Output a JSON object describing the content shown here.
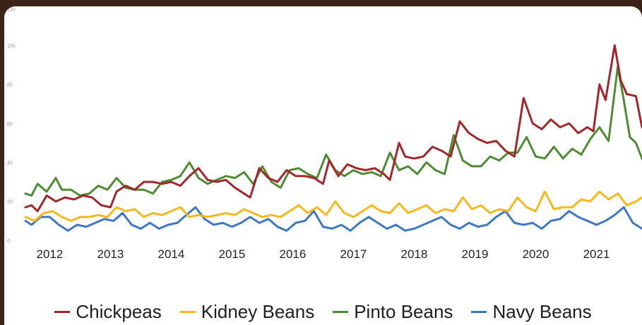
{
  "chart_data": {
    "type": "line",
    "title": "",
    "xlabel": "",
    "ylabel": "",
    "ylim": [
      0,
      120
    ],
    "yticks": [
      0,
      20,
      40,
      60,
      80,
      100,
      120
    ],
    "ytick_labels": [
      "0",
      "20",
      "40",
      "60",
      "80",
      "100",
      "120"
    ],
    "xlim": [
      2011.6,
      2021.75
    ],
    "xticks": [
      2012,
      2013,
      2014,
      2015,
      2016,
      2017,
      2018,
      2019,
      2020,
      2021
    ],
    "xtick_labels": [
      "2012",
      "2013",
      "2014",
      "2015",
      "2016",
      "2017",
      "2018",
      "2019",
      "2020",
      "2021"
    ],
    "grid": false,
    "legend_position": "bottom",
    "series": [
      {
        "name": "Chickpeas",
        "color": "#a3262b",
        "points": [
          [
            2011.6,
            17
          ],
          [
            2011.7,
            18
          ],
          [
            2011.8,
            15
          ],
          [
            2011.95,
            23
          ],
          [
            2012.1,
            20
          ],
          [
            2012.25,
            22
          ],
          [
            2012.4,
            21
          ],
          [
            2012.55,
            23
          ],
          [
            2012.7,
            22
          ],
          [
            2012.85,
            18
          ],
          [
            2013.0,
            17
          ],
          [
            2013.1,
            25
          ],
          [
            2013.25,
            28
          ],
          [
            2013.4,
            26
          ],
          [
            2013.55,
            30
          ],
          [
            2013.7,
            30
          ],
          [
            2013.85,
            29
          ],
          [
            2014.0,
            30
          ],
          [
            2014.15,
            28
          ],
          [
            2014.3,
            33
          ],
          [
            2014.45,
            37
          ],
          [
            2014.6,
            31
          ],
          [
            2014.75,
            30
          ],
          [
            2014.9,
            31
          ],
          [
            2015.05,
            27
          ],
          [
            2015.2,
            24
          ],
          [
            2015.3,
            22
          ],
          [
            2015.45,
            37
          ],
          [
            2015.6,
            32
          ],
          [
            2015.75,
            30
          ],
          [
            2015.9,
            36
          ],
          [
            2016.05,
            33
          ],
          [
            2016.2,
            33
          ],
          [
            2016.35,
            32
          ],
          [
            2016.5,
            29
          ],
          [
            2016.6,
            41
          ],
          [
            2016.75,
            33
          ],
          [
            2016.9,
            39
          ],
          [
            2017.05,
            37
          ],
          [
            2017.2,
            36
          ],
          [
            2017.35,
            37
          ],
          [
            2017.5,
            34
          ],
          [
            2017.6,
            31
          ],
          [
            2017.75,
            50
          ],
          [
            2017.85,
            43
          ],
          [
            2018.0,
            42
          ],
          [
            2018.15,
            43
          ],
          [
            2018.3,
            48
          ],
          [
            2018.45,
            46
          ],
          [
            2018.6,
            43
          ],
          [
            2018.75,
            61
          ],
          [
            2018.9,
            55
          ],
          [
            2019.05,
            52
          ],
          [
            2019.2,
            50
          ],
          [
            2019.35,
            51
          ],
          [
            2019.5,
            46
          ],
          [
            2019.65,
            43
          ],
          [
            2019.8,
            73
          ],
          [
            2019.95,
            60
          ],
          [
            2020.1,
            57
          ],
          [
            2020.25,
            62
          ],
          [
            2020.4,
            58
          ],
          [
            2020.55,
            60
          ],
          [
            2020.7,
            55
          ],
          [
            2020.85,
            58
          ],
          [
            2020.95,
            56
          ],
          [
            2021.05,
            80
          ],
          [
            2021.15,
            72
          ],
          [
            2021.3,
            100
          ],
          [
            2021.4,
            82
          ],
          [
            2021.5,
            75
          ],
          [
            2021.65,
            74
          ],
          [
            2021.75,
            58
          ]
        ]
      },
      {
        "name": "Kidney Beans",
        "color": "#f7b81c",
        "points": [
          [
            2011.6,
            12
          ],
          [
            2011.75,
            10
          ],
          [
            2011.9,
            14
          ],
          [
            2012.05,
            15
          ],
          [
            2012.2,
            12
          ],
          [
            2012.35,
            10
          ],
          [
            2012.5,
            12
          ],
          [
            2012.65,
            12
          ],
          [
            2012.8,
            13
          ],
          [
            2012.95,
            12
          ],
          [
            2013.1,
            17
          ],
          [
            2013.25,
            15
          ],
          [
            2013.4,
            16
          ],
          [
            2013.55,
            12
          ],
          [
            2013.7,
            14
          ],
          [
            2013.85,
            13
          ],
          [
            2014.0,
            15
          ],
          [
            2014.15,
            17
          ],
          [
            2014.3,
            12
          ],
          [
            2014.45,
            13
          ],
          [
            2014.6,
            12
          ],
          [
            2014.75,
            13
          ],
          [
            2014.9,
            14
          ],
          [
            2015.05,
            13
          ],
          [
            2015.2,
            16
          ],
          [
            2015.35,
            14
          ],
          [
            2015.5,
            12
          ],
          [
            2015.65,
            13
          ],
          [
            2015.8,
            12
          ],
          [
            2015.95,
            15
          ],
          [
            2016.1,
            18
          ],
          [
            2016.25,
            14
          ],
          [
            2016.4,
            17
          ],
          [
            2016.55,
            13
          ],
          [
            2016.7,
            20
          ],
          [
            2016.85,
            14
          ],
          [
            2017.0,
            12
          ],
          [
            2017.15,
            15
          ],
          [
            2017.3,
            18
          ],
          [
            2017.45,
            15
          ],
          [
            2017.6,
            14
          ],
          [
            2017.75,
            19
          ],
          [
            2017.9,
            14
          ],
          [
            2018.05,
            16
          ],
          [
            2018.2,
            18
          ],
          [
            2018.35,
            14
          ],
          [
            2018.5,
            16
          ],
          [
            2018.65,
            15
          ],
          [
            2018.8,
            22
          ],
          [
            2018.95,
            16
          ],
          [
            2019.1,
            18
          ],
          [
            2019.25,
            14
          ],
          [
            2019.4,
            16
          ],
          [
            2019.55,
            15
          ],
          [
            2019.7,
            22
          ],
          [
            2019.85,
            17
          ],
          [
            2020.0,
            15
          ],
          [
            2020.15,
            25
          ],
          [
            2020.3,
            16
          ],
          [
            2020.45,
            17
          ],
          [
            2020.6,
            17
          ],
          [
            2020.75,
            21
          ],
          [
            2020.9,
            20
          ],
          [
            2021.05,
            25
          ],
          [
            2021.2,
            21
          ],
          [
            2021.35,
            24
          ],
          [
            2021.5,
            18
          ],
          [
            2021.65,
            20
          ],
          [
            2021.75,
            22
          ]
        ]
      },
      {
        "name": "Pinto Beans",
        "color": "#4e8c34",
        "points": [
          [
            2011.6,
            24
          ],
          [
            2011.7,
            23
          ],
          [
            2011.8,
            29
          ],
          [
            2011.95,
            25
          ],
          [
            2012.1,
            32
          ],
          [
            2012.2,
            26
          ],
          [
            2012.35,
            26
          ],
          [
            2012.5,
            23
          ],
          [
            2012.65,
            24
          ],
          [
            2012.8,
            28
          ],
          [
            2012.95,
            26
          ],
          [
            2013.1,
            32
          ],
          [
            2013.25,
            27
          ],
          [
            2013.4,
            26
          ],
          [
            2013.55,
            26
          ],
          [
            2013.7,
            24
          ],
          [
            2013.85,
            30
          ],
          [
            2014.0,
            31
          ],
          [
            2014.15,
            33
          ],
          [
            2014.3,
            40
          ],
          [
            2014.45,
            32
          ],
          [
            2014.6,
            29
          ],
          [
            2014.75,
            31
          ],
          [
            2014.9,
            33
          ],
          [
            2015.05,
            32
          ],
          [
            2015.2,
            35
          ],
          [
            2015.35,
            29
          ],
          [
            2015.5,
            38
          ],
          [
            2015.65,
            30
          ],
          [
            2015.8,
            27
          ],
          [
            2015.95,
            36
          ],
          [
            2016.1,
            37
          ],
          [
            2016.25,
            34
          ],
          [
            2016.4,
            32
          ],
          [
            2016.55,
            44
          ],
          [
            2016.7,
            36
          ],
          [
            2016.85,
            33
          ],
          [
            2017.0,
            36
          ],
          [
            2017.15,
            34
          ],
          [
            2017.3,
            35
          ],
          [
            2017.45,
            33
          ],
          [
            2017.6,
            45
          ],
          [
            2017.75,
            36
          ],
          [
            2017.9,
            38
          ],
          [
            2018.05,
            34
          ],
          [
            2018.2,
            40
          ],
          [
            2018.35,
            36
          ],
          [
            2018.5,
            34
          ],
          [
            2018.65,
            54
          ],
          [
            2018.8,
            41
          ],
          [
            2018.95,
            38
          ],
          [
            2019.1,
            38
          ],
          [
            2019.25,
            43
          ],
          [
            2019.4,
            41
          ],
          [
            2019.55,
            45
          ],
          [
            2019.7,
            45
          ],
          [
            2019.85,
            53
          ],
          [
            2020.0,
            43
          ],
          [
            2020.15,
            42
          ],
          [
            2020.3,
            48
          ],
          [
            2020.45,
            42
          ],
          [
            2020.6,
            47
          ],
          [
            2020.75,
            44
          ],
          [
            2020.9,
            52
          ],
          [
            2021.05,
            58
          ],
          [
            2021.2,
            51
          ],
          [
            2021.35,
            89
          ],
          [
            2021.45,
            72
          ],
          [
            2021.55,
            53
          ],
          [
            2021.65,
            50
          ],
          [
            2021.75,
            42
          ]
        ]
      },
      {
        "name": "Navy Beans",
        "color": "#3e78c2",
        "points": [
          [
            2011.6,
            10
          ],
          [
            2011.7,
            8
          ],
          [
            2011.85,
            12
          ],
          [
            2012.0,
            12
          ],
          [
            2012.15,
            8
          ],
          [
            2012.3,
            5
          ],
          [
            2012.45,
            8
          ],
          [
            2012.6,
            7
          ],
          [
            2012.75,
            9
          ],
          [
            2012.9,
            11
          ],
          [
            2013.05,
            10
          ],
          [
            2013.2,
            14
          ],
          [
            2013.35,
            8
          ],
          [
            2013.5,
            6
          ],
          [
            2013.65,
            9
          ],
          [
            2013.8,
            6
          ],
          [
            2013.95,
            8
          ],
          [
            2014.1,
            9
          ],
          [
            2014.25,
            13
          ],
          [
            2014.4,
            17
          ],
          [
            2014.55,
            11
          ],
          [
            2014.7,
            8
          ],
          [
            2014.85,
            9
          ],
          [
            2015.0,
            7
          ],
          [
            2015.15,
            9
          ],
          [
            2015.3,
            12
          ],
          [
            2015.45,
            9
          ],
          [
            2015.6,
            11
          ],
          [
            2015.75,
            7
          ],
          [
            2015.9,
            5
          ],
          [
            2016.05,
            9
          ],
          [
            2016.2,
            10
          ],
          [
            2016.35,
            15
          ],
          [
            2016.5,
            7
          ],
          [
            2016.65,
            6
          ],
          [
            2016.8,
            8
          ],
          [
            2016.95,
            5
          ],
          [
            2017.1,
            9
          ],
          [
            2017.25,
            12
          ],
          [
            2017.4,
            9
          ],
          [
            2017.55,
            6
          ],
          [
            2017.7,
            8
          ],
          [
            2017.85,
            5
          ],
          [
            2018.0,
            6
          ],
          [
            2018.15,
            8
          ],
          [
            2018.3,
            10
          ],
          [
            2018.45,
            12
          ],
          [
            2018.6,
            8
          ],
          [
            2018.75,
            6
          ],
          [
            2018.9,
            9
          ],
          [
            2019.05,
            7
          ],
          [
            2019.2,
            8
          ],
          [
            2019.35,
            12
          ],
          [
            2019.5,
            15
          ],
          [
            2019.65,
            9
          ],
          [
            2019.8,
            8
          ],
          [
            2019.95,
            9
          ],
          [
            2020.1,
            6
          ],
          [
            2020.25,
            10
          ],
          [
            2020.4,
            11
          ],
          [
            2020.55,
            15
          ],
          [
            2020.7,
            12
          ],
          [
            2020.85,
            10
          ],
          [
            2021.0,
            8
          ],
          [
            2021.15,
            10
          ],
          [
            2021.3,
            13
          ],
          [
            2021.45,
            17
          ],
          [
            2021.6,
            9
          ],
          [
            2021.75,
            6
          ]
        ]
      }
    ]
  }
}
